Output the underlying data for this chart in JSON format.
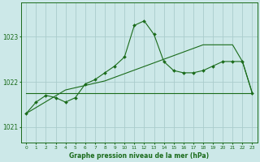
{
  "title": "Graphe pression niveau de la mer (hPa)",
  "background_color": "#cce8e8",
  "grid_color": "#aacccc",
  "line_color": "#1a6b1a",
  "xlim": [
    -0.5,
    23.5
  ],
  "ylim": [
    1020.65,
    1023.75
  ],
  "yticks": [
    1021,
    1022,
    1023
  ],
  "xticks": [
    0,
    1,
    2,
    3,
    4,
    5,
    6,
    7,
    8,
    9,
    10,
    11,
    12,
    13,
    14,
    15,
    16,
    17,
    18,
    19,
    20,
    21,
    22,
    23
  ],
  "series1": [
    1021.3,
    1021.55,
    1021.7,
    1021.65,
    1021.55,
    1021.65,
    1021.95,
    1022.05,
    1022.2,
    1022.35,
    1022.55,
    1023.25,
    1023.35,
    1023.05,
    1022.45,
    1022.25,
    1022.2,
    1022.2,
    1022.25,
    1022.35,
    1022.45,
    1022.45,
    1022.45,
    1021.75
  ],
  "series2": [
    1021.75,
    1021.75,
    1021.75,
    1021.75,
    1021.75,
    1021.75,
    1021.75,
    1021.75,
    1021.75,
    1021.75,
    1021.75,
    1021.75,
    1021.75,
    1021.75,
    1021.75,
    1021.75,
    1021.75,
    1021.75,
    1021.75,
    1021.75,
    1021.75,
    1021.75,
    1021.75,
    1021.75
  ],
  "series3": [
    1021.3,
    1021.43,
    1021.56,
    1021.69,
    1021.82,
    1021.87,
    1021.92,
    1021.97,
    1022.02,
    1022.1,
    1022.18,
    1022.26,
    1022.34,
    1022.42,
    1022.5,
    1022.58,
    1022.66,
    1022.74,
    1022.82,
    1022.82,
    1022.82,
    1022.82,
    1022.45,
    1021.75
  ]
}
